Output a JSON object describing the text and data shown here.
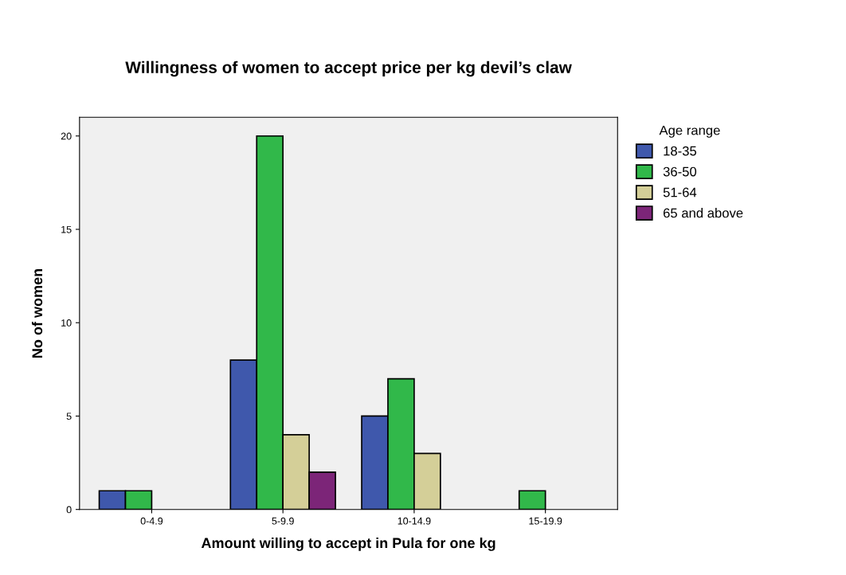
{
  "chart_data": {
    "type": "bar",
    "title": "Willingness of women to accept price per kg devil’s claw",
    "xlabel": "Amount willing to accept in Pula for one kg",
    "ylabel": "No of women",
    "legend_title": "Age range",
    "categories": [
      "0-4.9",
      "5-9.9",
      "10-14.9",
      "15-19.9"
    ],
    "series": [
      {
        "name": "18-35",
        "color": "#3f58ac",
        "values": [
          1,
          8,
          5,
          null
        ]
      },
      {
        "name": "36-50",
        "color": "#31b84a",
        "values": [
          1,
          20,
          7,
          1
        ]
      },
      {
        "name": "51-64",
        "color": "#d4cf98",
        "values": [
          null,
          4,
          3,
          null
        ]
      },
      {
        "name": "65 and above",
        "color": "#7c2578",
        "values": [
          null,
          2,
          null,
          null
        ]
      }
    ],
    "ylim": [
      0,
      21
    ],
    "yticks": [
      0,
      5,
      10,
      15,
      20
    ],
    "grid": false,
    "legend": "top right"
  }
}
